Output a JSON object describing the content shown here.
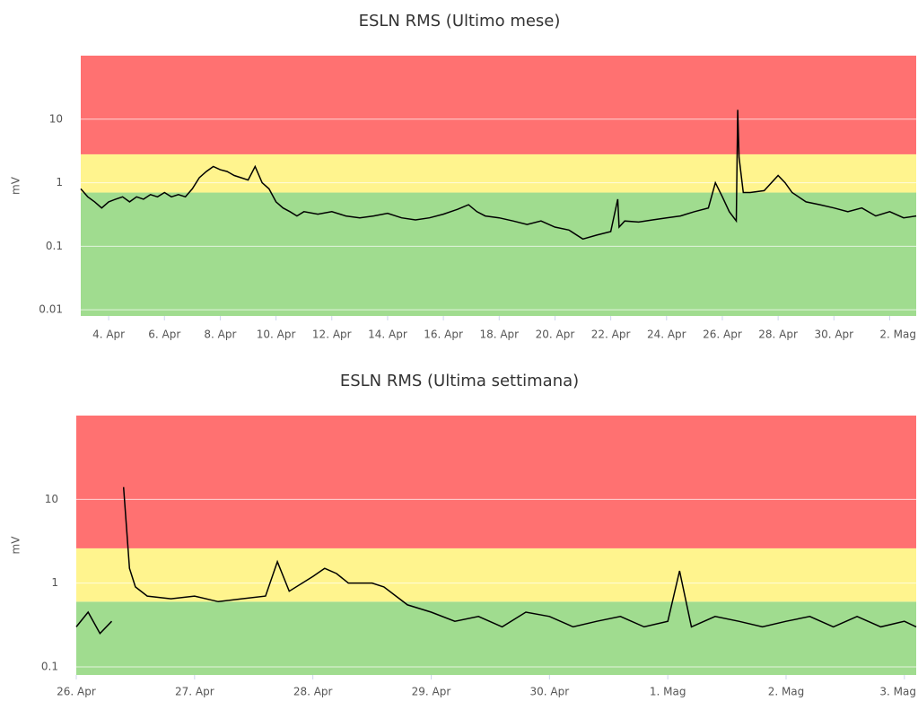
{
  "chart_data": [
    {
      "type": "line",
      "title": "ESLN RMS (Ultimo mese)",
      "ylabel": "mV",
      "ylog": true,
      "grid": true,
      "xlim": [
        3,
        32.95
      ],
      "ylim": [
        0.008,
        100
      ],
      "xticks": [
        {
          "value": 4,
          "label": "4. Apr"
        },
        {
          "value": 6,
          "label": "6. Apr"
        },
        {
          "value": 8,
          "label": "8. Apr"
        },
        {
          "value": 10,
          "label": "10. Apr"
        },
        {
          "value": 12,
          "label": "12. Apr"
        },
        {
          "value": 14,
          "label": "14. Apr"
        },
        {
          "value": 16,
          "label": "16. Apr"
        },
        {
          "value": 18,
          "label": "18. Apr"
        },
        {
          "value": 20,
          "label": "20. Apr"
        },
        {
          "value": 22,
          "label": "22. Apr"
        },
        {
          "value": 24,
          "label": "24. Apr"
        },
        {
          "value": 26,
          "label": "26. Apr"
        },
        {
          "value": 28,
          "label": "28. Apr"
        },
        {
          "value": 30,
          "label": "30. Apr"
        },
        {
          "value": 32,
          "label": "2. Mag"
        }
      ],
      "yticks": [
        0.01,
        0.1,
        1,
        10
      ],
      "bands": [
        {
          "from": 0.008,
          "to": 0.7,
          "color": "#a0dc8f"
        },
        {
          "from": 0.7,
          "to": 2.8,
          "color": "#fff48e"
        },
        {
          "from": 2.8,
          "to": 100,
          "color": "#ff7171"
        }
      ],
      "series": [
        {
          "name": "ESLN RMS",
          "color": "#000000",
          "x": [
            3.0,
            3.25,
            3.5,
            3.75,
            4.0,
            4.25,
            4.5,
            4.75,
            5,
            5.25,
            5.5,
            5.75,
            6,
            6.25,
            6.5,
            6.75,
            7,
            7.25,
            7.5,
            7.75,
            8,
            8.25,
            8.5,
            8.75,
            9,
            9.25,
            9.5,
            9.75,
            10,
            10.25,
            10.5,
            10.75,
            11,
            11.5,
            12,
            12.5,
            13,
            13.5,
            14,
            14.5,
            15,
            15.5,
            16,
            16.5,
            16.9,
            17.2,
            17.5,
            18,
            18.5,
            19,
            19.5,
            20,
            20.5,
            21,
            21.5,
            22,
            22.25,
            22.3,
            22.5,
            23,
            23.5,
            24,
            24.5,
            25,
            25.5,
            25.75,
            26,
            26.25,
            26.5,
            26.55,
            26.6,
            26.75,
            27,
            27.5,
            28,
            28.25,
            28.5,
            29,
            29.5,
            30,
            30.5,
            31,
            31.5,
            32,
            32.5,
            32.95
          ],
          "values": [
            0.8,
            0.6,
            0.5,
            0.4,
            0.5,
            0.55,
            0.6,
            0.5,
            0.6,
            0.55,
            0.65,
            0.6,
            0.7,
            0.6,
            0.65,
            0.6,
            0.8,
            1.2,
            1.5,
            1.8,
            1.6,
            1.5,
            1.3,
            1.2,
            1.1,
            1.8,
            1.0,
            0.8,
            0.5,
            0.4,
            0.35,
            0.3,
            0.35,
            0.32,
            0.35,
            0.3,
            0.28,
            0.3,
            0.33,
            0.28,
            0.26,
            0.28,
            0.32,
            0.38,
            0.45,
            0.35,
            0.3,
            0.28,
            0.25,
            0.22,
            0.25,
            0.2,
            0.18,
            0.13,
            0.15,
            0.17,
            0.55,
            0.2,
            0.25,
            0.24,
            0.26,
            0.28,
            0.3,
            0.35,
            0.4,
            1.0,
            0.6,
            0.35,
            0.25,
            14,
            2.5,
            0.7,
            0.7,
            0.75,
            1.3,
            1.0,
            0.7,
            0.5,
            0.45,
            0.4,
            0.35,
            0.4,
            0.3,
            0.35,
            0.28,
            0.3
          ]
        }
      ]
    },
    {
      "type": "line",
      "title": "ESLN RMS (Ultima settimana)",
      "ylabel": "mV",
      "ylog": true,
      "grid": true,
      "xlim": [
        26,
        33.1
      ],
      "ylim": [
        0.08,
        100
      ],
      "xticks": [
        {
          "value": 26,
          "label": "26. Apr"
        },
        {
          "value": 27,
          "label": "27. Apr"
        },
        {
          "value": 28,
          "label": "28. Apr"
        },
        {
          "value": 29,
          "label": "29. Apr"
        },
        {
          "value": 30,
          "label": "30. Apr"
        },
        {
          "value": 31,
          "label": "1. Mag"
        },
        {
          "value": 32,
          "label": "2. Mag"
        },
        {
          "value": 33,
          "label": "3. Mag"
        }
      ],
      "yticks": [
        0.1,
        1,
        10
      ],
      "bands": [
        {
          "from": 0.08,
          "to": 0.6,
          "color": "#a0dc8f"
        },
        {
          "from": 0.6,
          "to": 2.6,
          "color": "#fff48e"
        },
        {
          "from": 2.6,
          "to": 100,
          "color": "#ff7171"
        }
      ],
      "series": [
        {
          "name": "ESLN RMS",
          "color": "#000000",
          "x": [
            26.0,
            26.1,
            26.2,
            26.3,
            26.35,
            26.4,
            26.45,
            26.5,
            26.6,
            26.8,
            27,
            27.2,
            27.4,
            27.6,
            27.7,
            27.8,
            28,
            28.1,
            28.2,
            28.3,
            28.5,
            28.6,
            28.8,
            29,
            29.2,
            29.4,
            29.6,
            29.8,
            30,
            30.2,
            30.4,
            30.6,
            30.8,
            31,
            31.1,
            31.2,
            31.4,
            31.6,
            31.8,
            32,
            32.2,
            32.4,
            32.6,
            32.8,
            33,
            33.1
          ],
          "values": [
            0.3,
            0.45,
            0.25,
            0.35,
            null,
            14,
            1.5,
            0.9,
            0.7,
            0.65,
            0.7,
            0.6,
            0.65,
            0.7,
            1.8,
            0.8,
            1.2,
            1.5,
            1.3,
            1.0,
            1.0,
            0.9,
            0.55,
            0.45,
            0.35,
            0.4,
            0.3,
            0.45,
            0.4,
            0.3,
            0.35,
            0.4,
            0.3,
            0.35,
            1.4,
            0.3,
            0.4,
            0.35,
            0.3,
            0.35,
            0.4,
            0.3,
            0.4,
            0.3,
            0.35,
            0.3
          ]
        }
      ]
    }
  ]
}
